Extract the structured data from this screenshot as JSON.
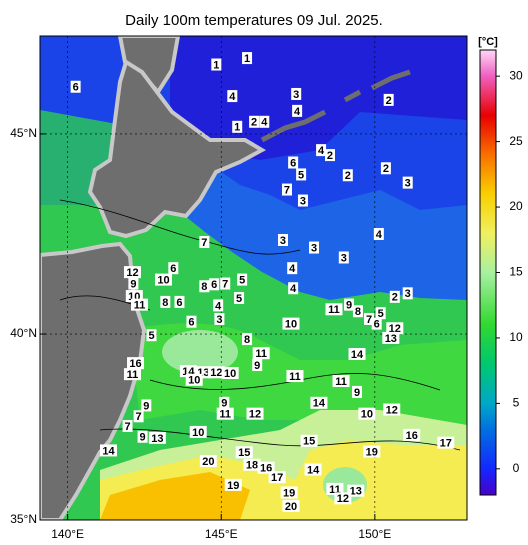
{
  "chart_data": {
    "type": "map",
    "title": "Daily 100m temperatures 09 Jul. 2025.",
    "projection": "mercator",
    "xlim": [
      139.1,
      153
    ],
    "ylim": [
      35,
      47.3
    ],
    "xticks": [
      {
        "value": 140,
        "label": "140°E"
      },
      {
        "value": 145,
        "label": "145°E"
      },
      {
        "value": 150,
        "label": "150°E"
      }
    ],
    "yticks": [
      {
        "value": 35,
        "label": "35°N"
      },
      {
        "value": 40,
        "label": "40°N"
      },
      {
        "value": 45,
        "label": "45°N"
      }
    ],
    "grid": true,
    "colorbar": {
      "label": "[°C]",
      "range": [
        -2,
        32
      ],
      "ticks": [
        0,
        5,
        10,
        15,
        20,
        25,
        30
      ],
      "stops": [
        {
          "value": -2,
          "color": "#4a00c8"
        },
        {
          "value": 0,
          "color": "#1428ff"
        },
        {
          "value": 3,
          "color": "#0070e0"
        },
        {
          "value": 5,
          "color": "#00a8c8"
        },
        {
          "value": 8,
          "color": "#00c870"
        },
        {
          "value": 11,
          "color": "#30d830"
        },
        {
          "value": 15,
          "color": "#a8f0a0"
        },
        {
          "value": 18,
          "color": "#f0f060"
        },
        {
          "value": 21,
          "color": "#f8d000"
        },
        {
          "value": 24,
          "color": "#f87000"
        },
        {
          "value": 27,
          "color": "#e80000"
        },
        {
          "value": 30,
          "color": "#f060c0"
        },
        {
          "value": 32,
          "color": "#ffd8f8"
        }
      ]
    },
    "contour_labels": [
      {
        "value": 1,
        "lon": 144.84,
        "lat": 46.64
      },
      {
        "value": 1,
        "lon": 145.84,
        "lat": 46.79
      },
      {
        "value": 6,
        "lon": 140.26,
        "lat": 46.12
      },
      {
        "value": 4,
        "lon": 145.36,
        "lat": 45.9
      },
      {
        "value": 3,
        "lon": 147.44,
        "lat": 45.95
      },
      {
        "value": 2,
        "lon": 150.45,
        "lat": 45.81
      },
      {
        "value": 4,
        "lon": 147.47,
        "lat": 45.55
      },
      {
        "value": 1,
        "lon": 145.52,
        "lat": 45.17
      },
      {
        "value": 2,
        "lon": 146.07,
        "lat": 45.29
      },
      {
        "value": 4,
        "lon": 146.4,
        "lat": 45.29
      },
      {
        "value": 4,
        "lon": 148.25,
        "lat": 44.61
      },
      {
        "value": 2,
        "lon": 148.54,
        "lat": 44.49
      },
      {
        "value": 6,
        "lon": 147.34,
        "lat": 44.31
      },
      {
        "value": 5,
        "lon": 147.6,
        "lat": 44.02
      },
      {
        "value": 2,
        "lon": 150.36,
        "lat": 44.17
      },
      {
        "value": 2,
        "lon": 149.12,
        "lat": 44.0
      },
      {
        "value": 3,
        "lon": 151.07,
        "lat": 43.82
      },
      {
        "value": 7,
        "lon": 147.14,
        "lat": 43.65
      },
      {
        "value": 3,
        "lon": 147.66,
        "lat": 43.38
      },
      {
        "value": 3,
        "lon": 147.01,
        "lat": 42.4
      },
      {
        "value": 3,
        "lon": 148.02,
        "lat": 42.21
      },
      {
        "value": 4,
        "lon": 150.13,
        "lat": 42.55
      },
      {
        "value": 7,
        "lon": 144.45,
        "lat": 42.35
      },
      {
        "value": 3,
        "lon": 148.99,
        "lat": 41.96
      },
      {
        "value": 4,
        "lon": 147.31,
        "lat": 41.69
      },
      {
        "value": 4,
        "lon": 147.34,
        "lat": 41.18
      },
      {
        "value": 6,
        "lon": 143.44,
        "lat": 41.69
      },
      {
        "value": 10,
        "lon": 143.12,
        "lat": 41.4
      },
      {
        "value": 12,
        "lon": 142.11,
        "lat": 41.59
      },
      {
        "value": 9,
        "lon": 142.14,
        "lat": 41.3
      },
      {
        "value": 10,
        "lon": 142.17,
        "lat": 40.98
      },
      {
        "value": 11,
        "lon": 142.34,
        "lat": 40.76
      },
      {
        "value": 8,
        "lon": 144.45,
        "lat": 41.23
      },
      {
        "value": 6,
        "lon": 144.77,
        "lat": 41.28
      },
      {
        "value": 7,
        "lon": 145.13,
        "lat": 41.3
      },
      {
        "value": 5,
        "lon": 145.68,
        "lat": 41.4
      },
      {
        "value": 5,
        "lon": 145.58,
        "lat": 40.93
      },
      {
        "value": 8,
        "lon": 143.18,
        "lat": 40.83
      },
      {
        "value": 6,
        "lon": 143.64,
        "lat": 40.83
      },
      {
        "value": 4,
        "lon": 144.9,
        "lat": 40.74
      },
      {
        "value": 3,
        "lon": 144.94,
        "lat": 40.39
      },
      {
        "value": 6,
        "lon": 144.03,
        "lat": 40.32
      },
      {
        "value": 2,
        "lon": 150.65,
        "lat": 40.96
      },
      {
        "value": 3,
        "lon": 151.07,
        "lat": 41.05
      },
      {
        "value": 11,
        "lon": 148.67,
        "lat": 40.64
      },
      {
        "value": 9,
        "lon": 149.16,
        "lat": 40.76
      },
      {
        "value": 8,
        "lon": 149.45,
        "lat": 40.59
      },
      {
        "value": 7,
        "lon": 149.81,
        "lat": 40.39
      },
      {
        "value": 6,
        "lon": 150.06,
        "lat": 40.27
      },
      {
        "value": 5,
        "lon": 150.19,
        "lat": 40.54
      },
      {
        "value": 12,
        "lon": 150.65,
        "lat": 40.15
      },
      {
        "value": 13,
        "lon": 150.52,
        "lat": 39.9
      },
      {
        "value": 10,
        "lon": 147.27,
        "lat": 40.27
      },
      {
        "value": 5,
        "lon": 142.73,
        "lat": 39.97
      },
      {
        "value": 8,
        "lon": 145.84,
        "lat": 39.87
      },
      {
        "value": 11,
        "lon": 146.3,
        "lat": 39.5
      },
      {
        "value": 9,
        "lon": 146.17,
        "lat": 39.19
      },
      {
        "value": 14,
        "lon": 149.42,
        "lat": 39.48
      },
      {
        "value": 16,
        "lon": 142.21,
        "lat": 39.24
      },
      {
        "value": 11,
        "lon": 142.11,
        "lat": 38.95
      },
      {
        "value": 14,
        "lon": 143.93,
        "lat": 39.03
      },
      {
        "value": 13,
        "lon": 144.42,
        "lat": 39.0
      },
      {
        "value": 12,
        "lon": 144.84,
        "lat": 39.0
      },
      {
        "value": 10,
        "lon": 145.29,
        "lat": 38.98
      },
      {
        "value": 10,
        "lon": 144.12,
        "lat": 38.8
      },
      {
        "value": 11,
        "lon": 147.4,
        "lat": 38.9
      },
      {
        "value": 11,
        "lon": 148.9,
        "lat": 38.77
      },
      {
        "value": 9,
        "lon": 149.42,
        "lat": 38.48
      },
      {
        "value": 14,
        "lon": 148.18,
        "lat": 38.19
      },
      {
        "value": 10,
        "lon": 149.74,
        "lat": 37.9
      },
      {
        "value": 12,
        "lon": 150.55,
        "lat": 38.01
      },
      {
        "value": 9,
        "lon": 142.56,
        "lat": 38.12
      },
      {
        "value": 7,
        "lon": 142.31,
        "lat": 37.83
      },
      {
        "value": 7,
        "lon": 141.95,
        "lat": 37.57
      },
      {
        "value": 9,
        "lon": 142.44,
        "lat": 37.28
      },
      {
        "value": 13,
        "lon": 142.92,
        "lat": 37.25
      },
      {
        "value": 9,
        "lon": 145.1,
        "lat": 38.19
      },
      {
        "value": 11,
        "lon": 145.13,
        "lat": 37.9
      },
      {
        "value": 12,
        "lon": 146.1,
        "lat": 37.9
      },
      {
        "value": 10,
        "lon": 144.25,
        "lat": 37.41
      },
      {
        "value": 15,
        "lon": 147.86,
        "lat": 37.17
      },
      {
        "value": 16,
        "lon": 151.2,
        "lat": 37.33
      },
      {
        "value": 17,
        "lon": 152.31,
        "lat": 37.12
      },
      {
        "value": 19,
        "lon": 149.9,
        "lat": 36.88
      },
      {
        "value": 14,
        "lon": 141.33,
        "lat": 36.91
      },
      {
        "value": 20,
        "lon": 144.58,
        "lat": 36.62
      },
      {
        "value": 15,
        "lon": 145.75,
        "lat": 36.86
      },
      {
        "value": 18,
        "lon": 146.0,
        "lat": 36.52
      },
      {
        "value": 16,
        "lon": 146.46,
        "lat": 36.44
      },
      {
        "value": 17,
        "lon": 146.82,
        "lat": 36.18
      },
      {
        "value": 14,
        "lon": 147.99,
        "lat": 36.39
      },
      {
        "value": 19,
        "lon": 145.39,
        "lat": 35.97
      },
      {
        "value": 19,
        "lon": 147.21,
        "lat": 35.76
      },
      {
        "value": 11,
        "lon": 148.7,
        "lat": 35.86
      },
      {
        "value": 13,
        "lon": 149.38,
        "lat": 35.81
      },
      {
        "value": 12,
        "lon": 148.96,
        "lat": 35.6
      },
      {
        "value": 20,
        "lon": 147.27,
        "lat": 35.39
      }
    ]
  }
}
